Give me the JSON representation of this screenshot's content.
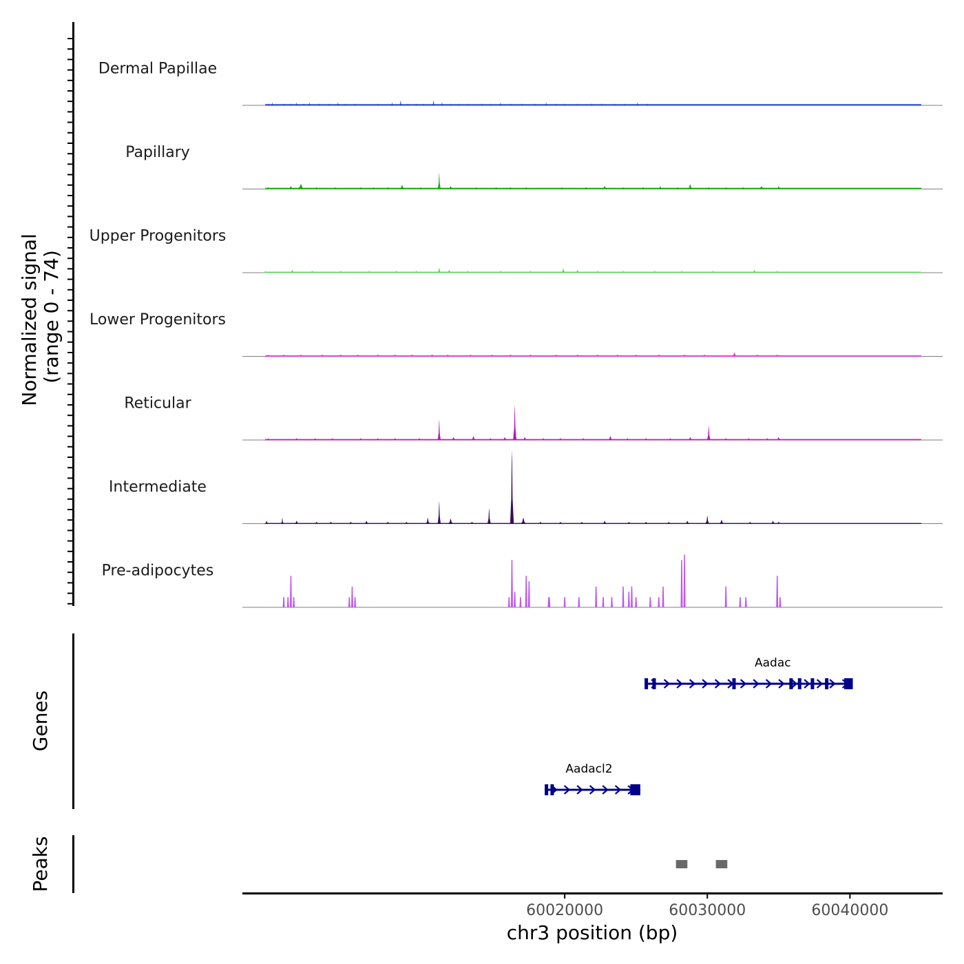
{
  "chart_data": {
    "type": "area",
    "chromosome": "chr3",
    "xlabel": "chr3 position (bp)",
    "xlim": [
      59997400,
      60046500
    ],
    "x_ticks": [
      60020000,
      60030000,
      60040000
    ],
    "x_tick_labels": [
      "60020000",
      "60030000",
      "60040000"
    ],
    "signal_ylabel_line1": "Normalized signal",
    "signal_ylabel_line2": "(range 0 - 74)",
    "ylim": [
      0,
      74
    ],
    "region": [
      59999000,
      60045000
    ],
    "tracks": [
      {
        "name": "Dermal Papillae",
        "color": "#1f3fd6",
        "style": "area",
        "baseline": 6,
        "peaks": [
          [
            59999200,
            2,
            90
          ],
          [
            59999500,
            3,
            70
          ],
          [
            60000300,
            2,
            60
          ],
          [
            60000800,
            2,
            60
          ],
          [
            60001200,
            3,
            70
          ],
          [
            60001700,
            2,
            60
          ],
          [
            60002100,
            3,
            90
          ],
          [
            60002800,
            2,
            90
          ],
          [
            60003500,
            2,
            70
          ],
          [
            60004100,
            3,
            90
          ],
          [
            60004600,
            2,
            70
          ],
          [
            60005300,
            2,
            50
          ],
          [
            60006900,
            2,
            60
          ],
          [
            60007900,
            3,
            90
          ],
          [
            60008500,
            5,
            70
          ],
          [
            60009000,
            2,
            70
          ],
          [
            60009600,
            2,
            60
          ],
          [
            60010100,
            2,
            60
          ],
          [
            60010800,
            5,
            90
          ],
          [
            60011400,
            3,
            80
          ],
          [
            60012000,
            2,
            60
          ],
          [
            60012600,
            2,
            60
          ],
          [
            60013200,
            2,
            60
          ],
          [
            60014200,
            2,
            90
          ],
          [
            60014800,
            2,
            60
          ],
          [
            60015500,
            3,
            90
          ],
          [
            60016200,
            2,
            80
          ],
          [
            60017000,
            2,
            60
          ],
          [
            60017900,
            2,
            60
          ],
          [
            60018700,
            3,
            90
          ],
          [
            60019400,
            2,
            70
          ],
          [
            60020000,
            2,
            60
          ],
          [
            60020900,
            2,
            60
          ],
          [
            60021900,
            2,
            70
          ],
          [
            60022600,
            2,
            60
          ],
          [
            60023500,
            2,
            70
          ],
          [
            60024200,
            2,
            60
          ],
          [
            60025100,
            3,
            90
          ],
          [
            60025800,
            2,
            60
          ]
        ]
      },
      {
        "name": "Papillary",
        "color": "#1aab0f",
        "style": "area",
        "baseline": 6,
        "peaks": [
          [
            59999200,
            2,
            150
          ],
          [
            60000800,
            3,
            250
          ],
          [
            60001500,
            5,
            300
          ],
          [
            60002600,
            2,
            200
          ],
          [
            60003900,
            2,
            200
          ],
          [
            60005700,
            2,
            200
          ],
          [
            60006600,
            2,
            200
          ],
          [
            60007600,
            2,
            250
          ],
          [
            60008600,
            4,
            250
          ],
          [
            60009900,
            2,
            200
          ],
          [
            60011200,
            16,
            110
          ],
          [
            60012000,
            3,
            250
          ],
          [
            60013800,
            2,
            200
          ],
          [
            60015200,
            2,
            200
          ],
          [
            60016200,
            2,
            200
          ],
          [
            60017300,
            2,
            200
          ],
          [
            60019800,
            2,
            200
          ],
          [
            60021500,
            2,
            250
          ],
          [
            60022800,
            3,
            250
          ],
          [
            60024100,
            2,
            200
          ],
          [
            60025500,
            2,
            250
          ],
          [
            60026700,
            3,
            200
          ],
          [
            60027900,
            2,
            200
          ],
          [
            60028800,
            5,
            200
          ],
          [
            60030100,
            2,
            200
          ],
          [
            60031300,
            2,
            200
          ],
          [
            60032500,
            2,
            250
          ],
          [
            60033800,
            3,
            250
          ],
          [
            60035000,
            3,
            200
          ]
        ]
      },
      {
        "name": "Upper Progenitors",
        "color": "#5cd75c",
        "style": "area",
        "baseline": 5,
        "peaks": [
          [
            59999000,
            2,
            150
          ],
          [
            60000900,
            3,
            200
          ],
          [
            60002300,
            2,
            200
          ],
          [
            60004300,
            2,
            200
          ],
          [
            60006300,
            2,
            200
          ],
          [
            60008200,
            2,
            200
          ],
          [
            60009600,
            2,
            200
          ],
          [
            60011200,
            5,
            160
          ],
          [
            60011900,
            3,
            200
          ],
          [
            60013200,
            2,
            200
          ],
          [
            60015500,
            2,
            200
          ],
          [
            60017600,
            2,
            200
          ],
          [
            60019900,
            4,
            200
          ],
          [
            60020900,
            3,
            200
          ],
          [
            60022300,
            2,
            200
          ],
          [
            60024100,
            2,
            200
          ],
          [
            60026300,
            2,
            200
          ],
          [
            60028200,
            2,
            200
          ],
          [
            60030400,
            2,
            200
          ],
          [
            60033300,
            3,
            200
          ],
          [
            60034900,
            2,
            200
          ]
        ]
      },
      {
        "name": "Lower Progenitors",
        "color": "#e02ee0",
        "style": "area",
        "baseline": 5,
        "peaks": [
          [
            59999200,
            2,
            150
          ],
          [
            60000300,
            2,
            200
          ],
          [
            60001500,
            2,
            200
          ],
          [
            60003000,
            2,
            200
          ],
          [
            60004300,
            2,
            200
          ],
          [
            60005500,
            2,
            200
          ],
          [
            60006900,
            2,
            200
          ],
          [
            60008100,
            2,
            200
          ],
          [
            60009300,
            2,
            250
          ],
          [
            60010700,
            2,
            250
          ],
          [
            60011800,
            2,
            200
          ],
          [
            60013400,
            2,
            200
          ],
          [
            60014900,
            2,
            200
          ],
          [
            60016200,
            2,
            200
          ],
          [
            60017600,
            2,
            200
          ],
          [
            60019400,
            2,
            200
          ],
          [
            60020900,
            2,
            200
          ],
          [
            60022300,
            2,
            200
          ],
          [
            60023700,
            2,
            200
          ],
          [
            60025000,
            2,
            200
          ],
          [
            60026600,
            2,
            250
          ],
          [
            60028400,
            2,
            200
          ],
          [
            60029800,
            2,
            200
          ],
          [
            60031900,
            4,
            200
          ],
          [
            60033500,
            2,
            200
          ],
          [
            60034900,
            2,
            200
          ]
        ]
      },
      {
        "name": "Reticular",
        "color": "#b41cb4",
        "style": "area",
        "baseline": 5,
        "peaks": [
          [
            59999200,
            2,
            120
          ],
          [
            60001200,
            2,
            200
          ],
          [
            60002500,
            2,
            200
          ],
          [
            60003700,
            2,
            200
          ],
          [
            60005700,
            2,
            200
          ],
          [
            60006900,
            2,
            200
          ],
          [
            60008100,
            2,
            200
          ],
          [
            60009800,
            2,
            200
          ],
          [
            60011200,
            20,
            110
          ],
          [
            60012200,
            3,
            200
          ],
          [
            60013600,
            4,
            200
          ],
          [
            60014800,
            2,
            200
          ],
          [
            60015800,
            3,
            200
          ],
          [
            60016500,
            34,
            120
          ],
          [
            60017200,
            3,
            200
          ],
          [
            60018500,
            2,
            200
          ],
          [
            60019700,
            2,
            200
          ],
          [
            60021300,
            2,
            200
          ],
          [
            60023200,
            4,
            200
          ],
          [
            60024400,
            2,
            200
          ],
          [
            60025700,
            2,
            200
          ],
          [
            60027400,
            2,
            200
          ],
          [
            60028800,
            3,
            200
          ],
          [
            60030100,
            14,
            120
          ],
          [
            60031300,
            2,
            200
          ],
          [
            60032900,
            2,
            200
          ],
          [
            60034200,
            2,
            200
          ],
          [
            60035000,
            3,
            200
          ]
        ]
      },
      {
        "name": "Intermediate",
        "color": "#3a0d5c",
        "style": "area",
        "baseline": 4,
        "peaks": [
          [
            59999100,
            3,
            150
          ],
          [
            60000200,
            6,
            100
          ],
          [
            60001200,
            3,
            200
          ],
          [
            60002600,
            2,
            200
          ],
          [
            60003600,
            2,
            200
          ],
          [
            60005000,
            2,
            200
          ],
          [
            60006100,
            3,
            200
          ],
          [
            60007600,
            2,
            200
          ],
          [
            60008900,
            2,
            200
          ],
          [
            60010400,
            6,
            150
          ],
          [
            60011200,
            22,
            110
          ],
          [
            60012000,
            5,
            200
          ],
          [
            60013500,
            2,
            200
          ],
          [
            60014700,
            15,
            120
          ],
          [
            60016300,
            70,
            130
          ],
          [
            60017100,
            6,
            200
          ],
          [
            60018300,
            2,
            200
          ],
          [
            60019700,
            2,
            200
          ],
          [
            60021200,
            2,
            200
          ],
          [
            60022800,
            3,
            200
          ],
          [
            60024500,
            2,
            200
          ],
          [
            60025700,
            2,
            200
          ],
          [
            60027300,
            2,
            200
          ],
          [
            60028600,
            3,
            200
          ],
          [
            60030000,
            8,
            150
          ],
          [
            60031000,
            4,
            200
          ],
          [
            60033000,
            2,
            200
          ],
          [
            60034600,
            3,
            200
          ],
          [
            60035000,
            2,
            200
          ]
        ]
      },
      {
        "name": "Pre-adipocytes",
        "color": "#bf57f0",
        "style": "spikes",
        "baseline": 0,
        "spikes": [
          [
            60000300,
            10,
            80
          ],
          [
            60000600,
            10,
            80
          ],
          [
            60000800,
            30,
            80
          ],
          [
            60001000,
            10,
            80
          ],
          [
            60004900,
            10,
            80
          ],
          [
            60005100,
            20,
            80
          ],
          [
            60005300,
            10,
            80
          ],
          [
            60016100,
            10,
            80
          ],
          [
            60016300,
            45,
            100
          ],
          [
            60016500,
            15,
            80
          ],
          [
            60016900,
            10,
            80
          ],
          [
            60017300,
            30,
            80
          ],
          [
            60017500,
            25,
            80
          ],
          [
            60018900,
            10,
            200
          ],
          [
            60020000,
            10,
            80
          ],
          [
            60021000,
            10,
            80
          ],
          [
            60022200,
            20,
            80
          ],
          [
            60022700,
            10,
            80
          ],
          [
            60023300,
            10,
            80
          ],
          [
            60024100,
            20,
            80
          ],
          [
            60024500,
            15,
            80
          ],
          [
            60024700,
            20,
            80
          ],
          [
            60025000,
            10,
            80
          ],
          [
            60026000,
            10,
            80
          ],
          [
            60026600,
            10,
            80
          ],
          [
            60026900,
            20,
            80
          ],
          [
            60028200,
            45,
            100
          ],
          [
            60028400,
            50,
            100
          ],
          [
            60031300,
            20,
            80
          ],
          [
            60032300,
            10,
            80
          ],
          [
            60032700,
            10,
            80
          ],
          [
            60034900,
            30,
            80
          ],
          [
            60035100,
            10,
            80
          ]
        ]
      }
    ],
    "genes_ylabel": "Genes",
    "genes": [
      {
        "name": "Aadac",
        "start": 60025600,
        "end": 60040200,
        "strand": "+",
        "exons": [
          [
            60025600,
            60025750
          ],
          [
            60026150,
            60026250
          ],
          [
            60031750,
            60031900
          ],
          [
            60035750,
            60035950
          ],
          [
            60036350,
            60036450
          ],
          [
            60037250,
            60037350
          ],
          [
            60038250,
            60038350
          ],
          [
            60039600,
            60040200
          ]
        ]
      },
      {
        "name": "Aadacl2",
        "start": 60018600,
        "end": 60025300,
        "strand": "+",
        "exons": [
          [
            60018600,
            60018700
          ],
          [
            60019000,
            60019200
          ],
          [
            60024600,
            60025300
          ]
        ]
      }
    ],
    "peaks_ylabel": "Peaks",
    "peak_regions": [
      [
        60027800,
        60028600
      ],
      [
        60030600,
        60031400
      ]
    ]
  },
  "colors": {
    "gene": "#00008b",
    "peak_region": "#696969",
    "axis": "#000000",
    "baseline": "#7f7f7f"
  }
}
